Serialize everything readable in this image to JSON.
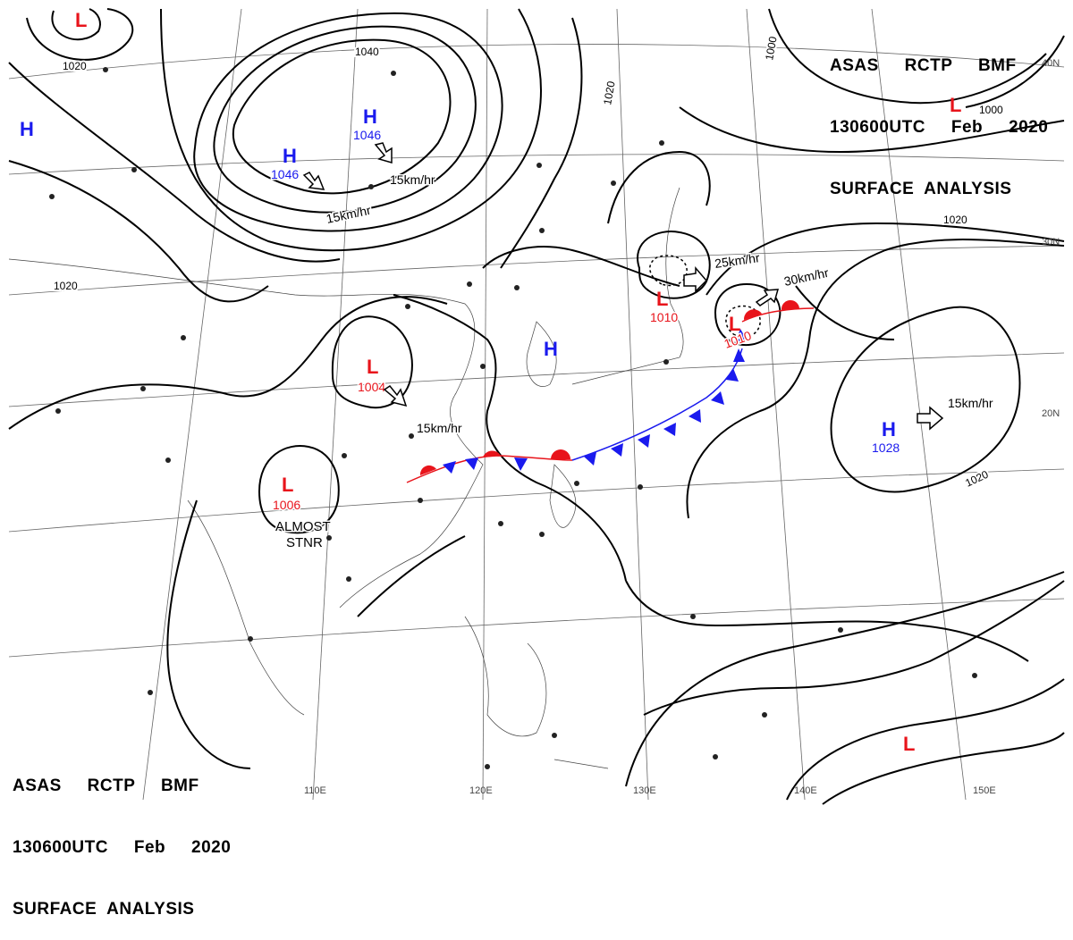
{
  "header": {
    "line1": "ASAS     RCTP     BMF",
    "line2": "130600UTC     Feb     2020",
    "line3": "SURFACE  ANALYSIS"
  },
  "isobar_labels": [
    "1040",
    "1020",
    "1020",
    "1020",
    "1020",
    "1020",
    "1000",
    "1000"
  ],
  "pressure_centers": [
    {
      "type": "L",
      "value": ""
    },
    {
      "type": "L",
      "value": ""
    },
    {
      "type": "L",
      "value": ""
    },
    {
      "type": "H",
      "value": ""
    },
    {
      "type": "H",
      "value": "1046"
    },
    {
      "type": "H",
      "value": "1046"
    },
    {
      "type": "L",
      "value": "1004"
    },
    {
      "type": "L",
      "value": "1006"
    },
    {
      "type": "L",
      "value": "1010"
    },
    {
      "type": "L",
      "value": "1010"
    },
    {
      "type": "H",
      "value": ""
    },
    {
      "type": "H",
      "value": "1028"
    }
  ],
  "motion_labels": [
    "15km/hr",
    "15km/hr",
    "15km/hr",
    "25km/hr",
    "30km/hr",
    "15km/hr"
  ],
  "annotations": {
    "almost": "ALMOST",
    "stnr": "STNR"
  },
  "longitude_labels": [
    "110E",
    "120E",
    "130E",
    "140E",
    "150E"
  ],
  "latitude_labels": [
    "40N",
    "30N",
    "20N"
  ],
  "colors": {
    "low": "#e8141b",
    "high": "#1a1aee",
    "warm_front": "#e8141b",
    "cold_front": "#1a1aee",
    "line": "#000000",
    "grid": "#555555"
  }
}
